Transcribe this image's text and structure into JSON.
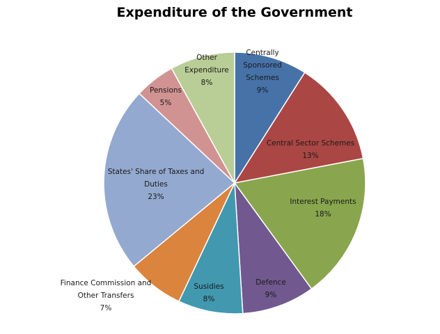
{
  "chart_data": {
    "type": "pie",
    "title": "Expenditure of the Government",
    "start_angle_deg": 0,
    "direction": "clockwise",
    "slices": [
      {
        "name": "Centrally Sponsored Schemes",
        "label_lines": [
          "Centrally",
          "Sponsored",
          "Schemes"
        ],
        "value": 9,
        "value_label": "9%",
        "color": "#4672A8",
        "label_color": "#1a1a1a",
        "label_placement": "inside"
      },
      {
        "name": "Central Sector Schemes",
        "label_lines": [
          "Central Sector Schemes"
        ],
        "value": 13,
        "value_label": "13%",
        "color": "#AA4644",
        "label_color": "#1a1a1a",
        "label_placement": "inside"
      },
      {
        "name": "Interest Payments",
        "label_lines": [
          "Interest Payments"
        ],
        "value": 18,
        "value_label": "18%",
        "color": "#89A54E",
        "label_color": "#1a1a1a",
        "label_placement": "inside"
      },
      {
        "name": "Defence",
        "label_lines": [
          "Defence"
        ],
        "value": 9,
        "value_label": "9%",
        "color": "#71588F",
        "label_color": "#1a1a1a",
        "label_placement": "inside"
      },
      {
        "name": "Susidies",
        "label_lines": [
          "Susidies"
        ],
        "value": 8,
        "value_label": "8%",
        "color": "#4198AF",
        "label_color": "#1a1a1a",
        "label_placement": "inside"
      },
      {
        "name": "Finance Commission and Other Transfers",
        "label_lines": [
          "Finance Commission and",
          "Other Transfers"
        ],
        "value": 7,
        "value_label": "7%",
        "color": "#DB843D",
        "label_color": "#1a1a1a",
        "label_placement": "outside"
      },
      {
        "name": "States' Share of Taxes and Duties",
        "label_lines": [
          "States' Share of Taxes and",
          "Duties"
        ],
        "value": 23,
        "value_label": "23%",
        "color": "#93A9CF",
        "label_color": "#1a1a1a",
        "label_placement": "inside"
      },
      {
        "name": "Pensions",
        "label_lines": [
          "Pensions"
        ],
        "value": 5,
        "value_label": "5%",
        "color": "#D19392",
        "label_color": "#1a1a1a",
        "label_placement": "inside"
      },
      {
        "name": "Other Expenditure",
        "label_lines": [
          "Other",
          "Expenditure"
        ],
        "value": 8,
        "value_label": "8%",
        "color": "#B9CD96",
        "label_color": "#1a1a1a",
        "label_placement": "inside"
      }
    ]
  }
}
